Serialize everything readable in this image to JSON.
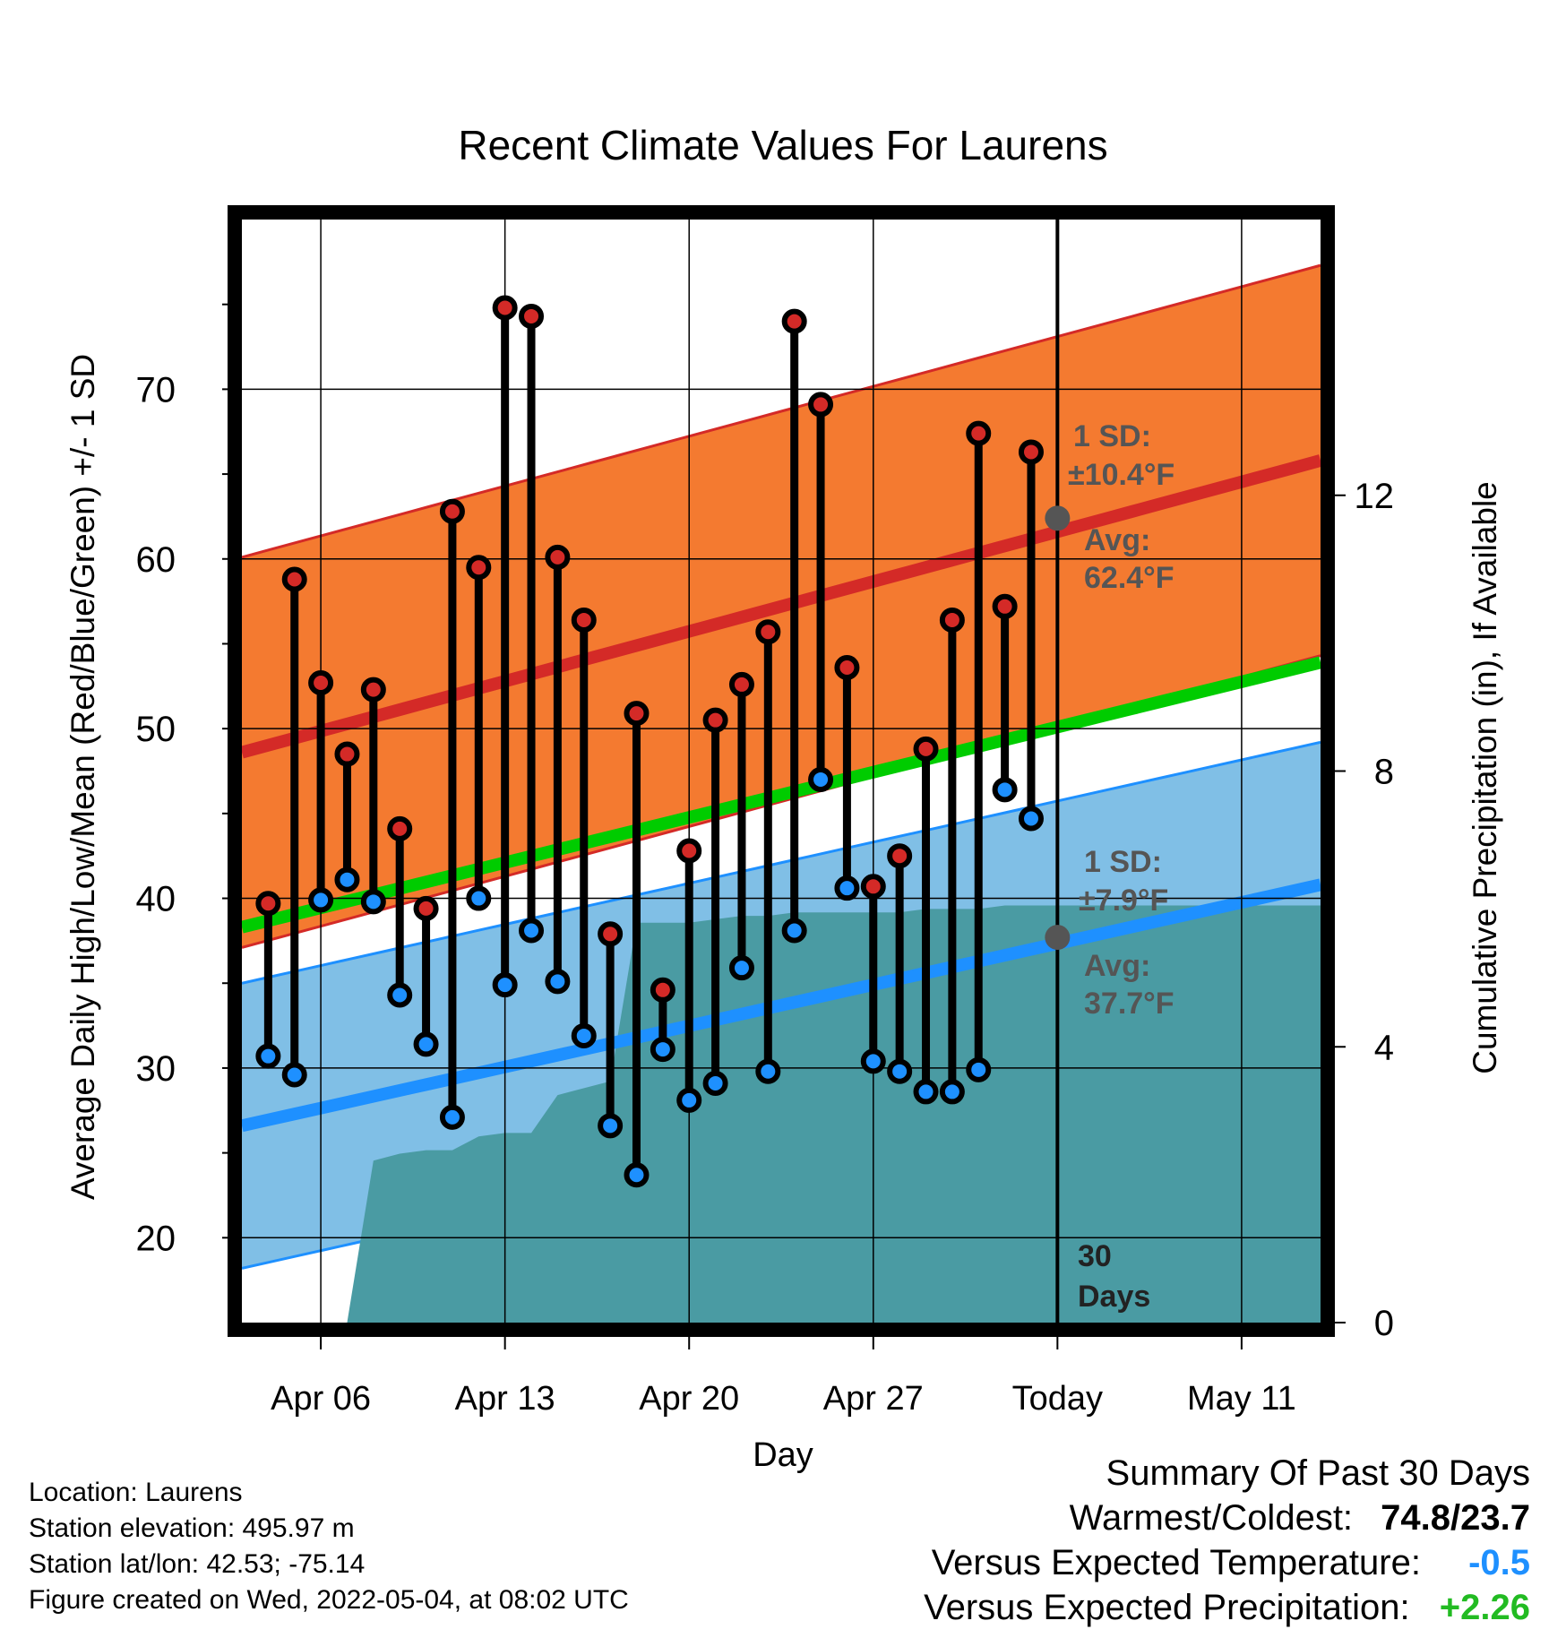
{
  "chart_data": {
    "type": "line",
    "title": "Recent Climate Values For Laurens",
    "xlabel": "Day",
    "ylabel": "Average Daily High/Low/Mean (Red/Blue/Green) +/- 1 SD",
    "y2label": "Cumulative Precipitation (in), If Available",
    "ylim": [
      15,
      80
    ],
    "y2lim": [
      0,
      16
    ],
    "yticks": [
      "20",
      "30",
      "40",
      "50",
      "60",
      "70"
    ],
    "y2ticks": [
      "0",
      "4",
      "8",
      "12"
    ],
    "x_start": "2022-04-03",
    "x_end": "2022-05-14",
    "x_ticks": [
      {
        "date": "2022-04-06",
        "label": "Apr 06"
      },
      {
        "date": "2022-04-13",
        "label": "Apr 13"
      },
      {
        "date": "2022-04-20",
        "label": "Apr 20"
      },
      {
        "date": "2022-04-27",
        "label": "Apr 27"
      },
      {
        "date": "2022-05-04",
        "label": "Today"
      },
      {
        "date": "2022-05-11",
        "label": "May 11"
      }
    ],
    "today": "2022-05-04",
    "period_label": [
      "30",
      "Days"
    ],
    "normal_high": {
      "start": 48.6,
      "end": 65.8,
      "sd": 11.5
    },
    "normal_low": {
      "start": 26.6,
      "end": 40.8,
      "sd": 8.4
    },
    "normal_mean": {
      "start": 38.3,
      "end": 53.9
    },
    "high_annotation": {
      "sd_label": "1 SD:",
      "sd_value": "±10.4°F",
      "avg_label": "Avg:",
      "avg_value": "62.4°F",
      "avg": 62.4
    },
    "low_annotation": {
      "sd_label": "1 SD:",
      "sd_value": "±7.9°F",
      "avg_label": "Avg:",
      "avg_value": "37.7°F",
      "avg": 37.7
    },
    "series": [
      {
        "name": "High",
        "color": "#d42a27",
        "values": [
          39.7,
          58.8,
          52.7,
          48.5,
          52.3,
          44.1,
          39.4,
          62.8,
          59.5,
          74.8,
          74.3,
          60.1,
          56.4,
          37.9,
          50.9,
          34.6,
          42.8,
          50.5,
          52.6,
          55.7,
          74.0,
          69.1,
          53.6,
          40.7,
          42.5,
          48.8,
          56.4,
          67.4,
          57.2,
          66.3
        ]
      },
      {
        "name": "Low",
        "color": "#1e90ff",
        "values": [
          30.7,
          29.6,
          39.9,
          41.1,
          39.8,
          34.3,
          31.4,
          27.1,
          40.0,
          34.9,
          38.1,
          35.1,
          31.9,
          26.6,
          23.7,
          31.1,
          28.1,
          29.1,
          35.9,
          29.8,
          38.1,
          47.0,
          40.6,
          30.4,
          29.8,
          28.6,
          28.6,
          29.9,
          46.4,
          44.7
        ]
      }
    ],
    "dates_start": "2022-04-04",
    "precipitation": {
      "color": "#4a9ba3",
      "values": [
        0,
        0,
        0,
        0,
        0.0,
        2.35,
        2.45,
        2.5,
        2.5,
        2.7,
        2.75,
        2.75,
        3.3,
        3.4,
        3.5,
        5.8,
        5.8,
        5.8,
        5.85,
        5.9,
        5.9,
        5.95,
        5.95,
        5.95,
        5.95,
        5.95,
        6.0,
        6.0,
        6.0,
        6.05,
        6.05,
        6.05,
        6.05,
        6.05,
        6.05,
        6.05,
        6.05,
        6.05,
        6.05,
        6.05,
        6.05
      ]
    }
  },
  "footer": {
    "location": "Location: Laurens",
    "elevation": "Station elevation: 495.97 m",
    "latlon": "Station lat/lon: 42.53; -75.14",
    "created": "Figure created on Wed, 2022-05-04, at 08:02 UTC"
  },
  "summary": {
    "title": "Summary Of Past 30 Days",
    "warm_label": "Warmest/Coldest:",
    "warm_value": "74.8/23.7",
    "temp_label": "Versus Expected Temperature:",
    "temp_value": "-0.5",
    "temp_color": "#1e90ff",
    "precip_label": "Versus Expected Precipitation:",
    "precip_value": "+2.26",
    "precip_color": "#22bb22"
  },
  "colors": {
    "high_band": "#f47a30",
    "high_line": "#d42a27",
    "low_band": "#80bfe6",
    "low_line": "#1e90ff",
    "mean_line": "#00cc00",
    "precip": "#4a9ba3",
    "annotation": "#555555"
  }
}
